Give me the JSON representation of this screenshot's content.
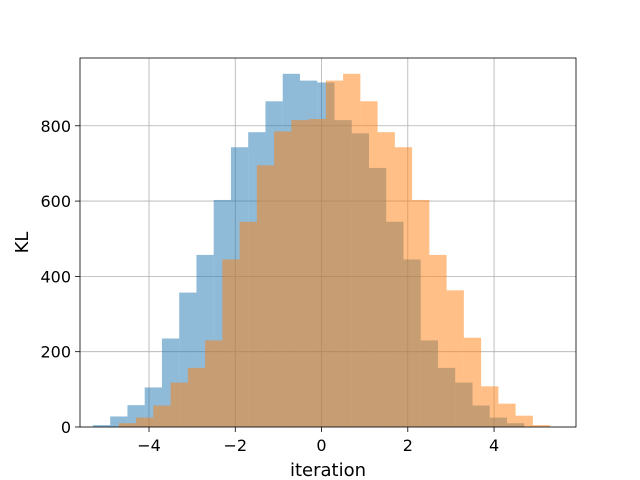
{
  "chart_data": {
    "type": "bar",
    "title": "",
    "xlabel": "iteration",
    "ylabel": "KL",
    "xlim": [
      -5.6,
      5.9
    ],
    "ylim": [
      0,
      980
    ],
    "grid": true,
    "x_ticks": [
      -4,
      -2,
      0,
      2,
      4
    ],
    "x_tick_labels": [
      "−4",
      "−2",
      "0",
      "2",
      "4"
    ],
    "y_ticks": [
      0,
      200,
      400,
      600,
      800
    ],
    "y_tick_labels": [
      "0",
      "200",
      "400",
      "600",
      "800"
    ],
    "series": [
      {
        "color": "#1f77b4",
        "opacity": 0.5,
        "bins": [
          {
            "x0": -5.3,
            "x1": -4.9,
            "value": 5
          },
          {
            "x0": -4.9,
            "x1": -4.5,
            "value": 28
          },
          {
            "x0": -4.5,
            "x1": -4.1,
            "value": 58
          },
          {
            "x0": -4.1,
            "x1": -3.7,
            "value": 105
          },
          {
            "x0": -3.7,
            "x1": -3.3,
            "value": 235
          },
          {
            "x0": -3.3,
            "x1": -2.9,
            "value": 357
          },
          {
            "x0": -2.9,
            "x1": -2.5,
            "value": 457
          },
          {
            "x0": -2.5,
            "x1": -2.1,
            "value": 603
          },
          {
            "x0": -2.1,
            "x1": -1.7,
            "value": 743
          },
          {
            "x0": -1.7,
            "x1": -1.3,
            "value": 783
          },
          {
            "x0": -1.3,
            "x1": -0.9,
            "value": 865
          },
          {
            "x0": -0.9,
            "x1": -0.5,
            "value": 938
          },
          {
            "x0": -0.5,
            "x1": -0.1,
            "value": 920
          },
          {
            "x0": -0.1,
            "x1": 0.3,
            "value": 915
          },
          {
            "x0": 0.3,
            "x1": 0.7,
            "value": 815
          },
          {
            "x0": 0.7,
            "x1": 1.1,
            "value": 780
          },
          {
            "x0": 1.1,
            "x1": 1.5,
            "value": 688
          },
          {
            "x0": 1.5,
            "x1": 1.9,
            "value": 545
          },
          {
            "x0": 1.9,
            "x1": 2.3,
            "value": 445
          },
          {
            "x0": 2.3,
            "x1": 2.7,
            "value": 230
          },
          {
            "x0": 2.7,
            "x1": 3.1,
            "value": 157
          },
          {
            "x0": 3.1,
            "x1": 3.5,
            "value": 118
          },
          {
            "x0": 3.5,
            "x1": 3.9,
            "value": 57
          },
          {
            "x0": 3.9,
            "x1": 4.3,
            "value": 25
          },
          {
            "x0": 4.3,
            "x1": 4.7,
            "value": 10
          }
        ]
      },
      {
        "color": "#ff7f0e",
        "opacity": 0.5,
        "bins": [
          {
            "x0": -4.7,
            "x1": -4.3,
            "value": 10
          },
          {
            "x0": -4.3,
            "x1": -3.9,
            "value": 25
          },
          {
            "x0": -3.9,
            "x1": -3.5,
            "value": 57
          },
          {
            "x0": -3.5,
            "x1": -3.1,
            "value": 118
          },
          {
            "x0": -3.1,
            "x1": -2.7,
            "value": 157
          },
          {
            "x0": -2.7,
            "x1": -2.3,
            "value": 230
          },
          {
            "x0": -2.3,
            "x1": -1.9,
            "value": 445
          },
          {
            "x0": -1.9,
            "x1": -1.5,
            "value": 545
          },
          {
            "x0": -1.5,
            "x1": -1.1,
            "value": 695
          },
          {
            "x0": -1.1,
            "x1": -0.7,
            "value": 785
          },
          {
            "x0": -0.7,
            "x1": -0.3,
            "value": 815
          },
          {
            "x0": -0.3,
            "x1": 0.1,
            "value": 818
          },
          {
            "x0": 0.1,
            "x1": 0.5,
            "value": 920
          },
          {
            "x0": 0.5,
            "x1": 0.9,
            "value": 938
          },
          {
            "x0": 0.9,
            "x1": 1.3,
            "value": 865
          },
          {
            "x0": 1.3,
            "x1": 1.7,
            "value": 783
          },
          {
            "x0": 1.7,
            "x1": 2.1,
            "value": 743
          },
          {
            "x0": 2.1,
            "x1": 2.5,
            "value": 603
          },
          {
            "x0": 2.5,
            "x1": 2.9,
            "value": 457
          },
          {
            "x0": 2.9,
            "x1": 3.3,
            "value": 363
          },
          {
            "x0": 3.3,
            "x1": 3.7,
            "value": 237
          },
          {
            "x0": 3.7,
            "x1": 4.1,
            "value": 108
          },
          {
            "x0": 4.1,
            "x1": 4.5,
            "value": 62
          },
          {
            "x0": 4.5,
            "x1": 4.9,
            "value": 30
          },
          {
            "x0": 4.9,
            "x1": 5.3,
            "value": 5
          }
        ]
      }
    ]
  }
}
